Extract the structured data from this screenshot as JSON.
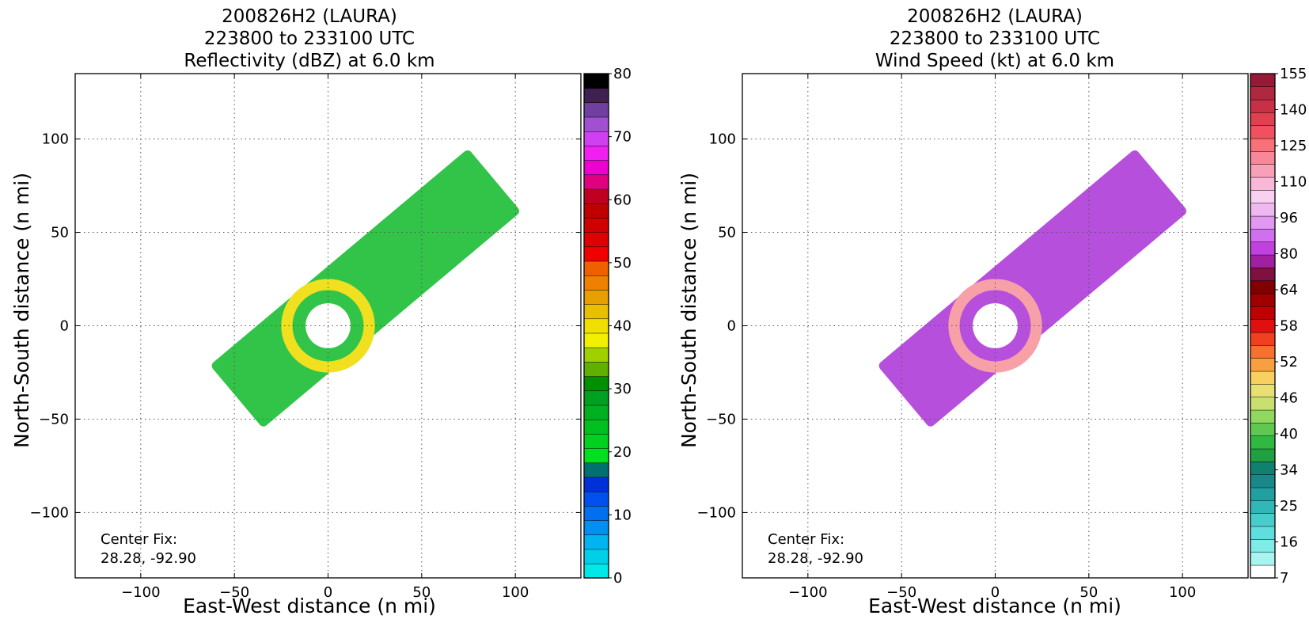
{
  "chart_data": [
    {
      "type": "heatmap",
      "title_lines": [
        "200826H2 (LAURA)",
        "223800 to 233100 UTC",
        "Reflectivity (dBZ) at 6.0 km"
      ],
      "xlabel": "East-West distance (n mi)",
      "ylabel": "North-South distance (n mi)",
      "xlim": [
        -135,
        135
      ],
      "ylim": [
        -135,
        135
      ],
      "x_ticks": [
        -100,
        -50,
        0,
        50,
        100
      ],
      "y_ticks": [
        -100,
        -50,
        0,
        50,
        100
      ],
      "grid": true,
      "annotation": [
        "Center Fix:",
        "28.28, -92.90"
      ],
      "colorbar": {
        "min": 0,
        "max": 80,
        "levels": [
          0,
          3,
          6,
          9,
          12,
          15,
          18,
          21,
          24,
          27,
          30,
          33,
          36,
          39,
          42,
          45,
          48,
          51,
          54,
          57,
          60,
          63,
          66,
          69,
          72,
          75,
          78,
          80
        ],
        "colors": [
          "#00e8e8",
          "#00cfe8",
          "#00b4f0",
          "#0090f0",
          "#0070f0",
          "#0050f0",
          "#0030d8",
          "#007070",
          "#00e020",
          "#00d020",
          "#00c020",
          "#00b020",
          "#00a020",
          "#009000",
          "#60b000",
          "#a0d000",
          "#f0f000",
          "#f0e000",
          "#e8c000",
          "#e8a000",
          "#f08000",
          "#f06000",
          "#f00000",
          "#e00000",
          "#d00000",
          "#c00000",
          "#c00020",
          "#e00080",
          "#f000d0",
          "#f020f0",
          "#d040f0",
          "#a050d0",
          "#7040a0",
          "#402050",
          "#000000"
        ],
        "tick_labels": [
          "0",
          "10",
          "20",
          "30",
          "40",
          "50",
          "60",
          "70",
          "80"
        ]
      },
      "field_color": "#1fbf3a",
      "eye_color": "#f0e020"
    },
    {
      "type": "heatmap",
      "title_lines": [
        "200826H2 (LAURA)",
        "223800 to 233100 UTC",
        "Wind Speed (kt) at 6.0 km"
      ],
      "xlabel": "East-West distance (n mi)",
      "ylabel": "North-South distance (n mi)",
      "xlim": [
        -135,
        135
      ],
      "ylim": [
        -135,
        135
      ],
      "x_ticks": [
        -100,
        -50,
        0,
        50,
        100
      ],
      "y_ticks": [
        -100,
        -50,
        0,
        50,
        100
      ],
      "grid": true,
      "annotation": [
        "Center Fix:",
        "28.28, -92.90"
      ],
      "colorbar": {
        "colors": [
          "#ffffff",
          "#a8f4f0",
          "#80ece8",
          "#60dede",
          "#48cccc",
          "#30b8b8",
          "#20a0a0",
          "#188888",
          "#108070",
          "#20a040",
          "#30b840",
          "#60c850",
          "#90d860",
          "#c8e070",
          "#e8e070",
          "#f8d060",
          "#f8a040",
          "#f87030",
          "#f04020",
          "#e01010",
          "#c00000",
          "#a00000",
          "#800000",
          "#801040",
          "#a020a0",
          "#c040e0",
          "#d070f0",
          "#e098f0",
          "#f0b8f0",
          "#f8d0f0",
          "#f8b8d8",
          "#f8a0b8",
          "#f88898",
          "#f87078",
          "#f05060",
          "#e04050",
          "#c83048",
          "#b02840",
          "#981838"
        ],
        "tick_labels": [
          "7",
          "16",
          "25",
          "34",
          "40",
          "46",
          "52",
          "58",
          "64",
          "80",
          "96",
          "110",
          "125",
          "140",
          "155"
        ]
      },
      "field_color": "#b040d8",
      "eye_color": "#f8a0a8"
    }
  ]
}
